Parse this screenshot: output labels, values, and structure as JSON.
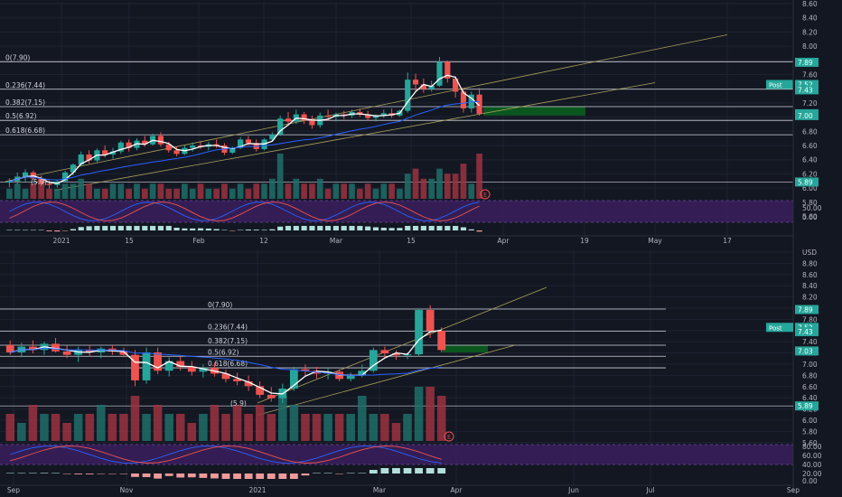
{
  "colors": {
    "background": "#131722",
    "grid": "#1f2331",
    "up": "#26a69a",
    "down": "#ef5350",
    "volume_up": "#1e6e68",
    "volume_down": "#9b3340",
    "fib_line": "#d1d4dc",
    "channel": "#a8a15a",
    "ma_white": "#ffffff",
    "ma_blue": "#2962ff",
    "target_zone": "#0b5d1e",
    "oscillator_band": "#3a1f5d",
    "label_teal": "#26a69a",
    "axis_text": "#b2b5be"
  },
  "chart_data": [
    {
      "type": "candlestick",
      "panel": "top",
      "timeframe": "daily",
      "y_ticks": [
        "8.60",
        "8.40",
        "8.20",
        "8.00",
        "7.80",
        "7.60",
        "7.40",
        "7.20",
        "7.00",
        "6.80",
        "6.60",
        "6.40",
        "6.20",
        "6.00",
        "5.80",
        "5.60"
      ],
      "oscillator_ticks": [
        "50.00",
        "0.00"
      ],
      "x_ticks": [
        "2021",
        "15",
        "Feb",
        "12",
        "Mar",
        "15",
        "Apr",
        "19",
        "May",
        "17"
      ],
      "ylim": [
        5.7,
        8.75
      ],
      "candles": [
        [
          5.88,
          5.95,
          5.8,
          5.9
        ],
        [
          5.9,
          6.05,
          5.85,
          5.98
        ],
        [
          5.98,
          6.1,
          5.9,
          6.05
        ],
        [
          6.05,
          6.08,
          5.92,
          5.95
        ],
        [
          5.95,
          6.0,
          5.82,
          5.86
        ],
        [
          5.86,
          5.92,
          5.78,
          5.84
        ],
        [
          5.84,
          5.93,
          5.8,
          5.9
        ],
        [
          5.9,
          6.08,
          5.88,
          6.05
        ],
        [
          6.05,
          6.2,
          6.0,
          6.18
        ],
        [
          6.18,
          6.4,
          6.15,
          6.35
        ],
        [
          6.35,
          6.42,
          6.2,
          6.25
        ],
        [
          6.25,
          6.45,
          6.22,
          6.42
        ],
        [
          6.42,
          6.5,
          6.3,
          6.35
        ],
        [
          6.35,
          6.46,
          6.28,
          6.4
        ],
        [
          6.4,
          6.58,
          6.36,
          6.55
        ],
        [
          6.55,
          6.6,
          6.4,
          6.46
        ],
        [
          6.46,
          6.62,
          6.42,
          6.58
        ],
        [
          6.58,
          6.66,
          6.48,
          6.52
        ],
        [
          6.52,
          6.7,
          6.5,
          6.66
        ],
        [
          6.66,
          6.72,
          6.48,
          6.52
        ],
        [
          6.52,
          6.56,
          6.38,
          6.42
        ],
        [
          6.42,
          6.48,
          6.32,
          6.36
        ],
        [
          6.36,
          6.5,
          6.34,
          6.46
        ],
        [
          6.46,
          6.55,
          6.4,
          6.5
        ],
        [
          6.5,
          6.58,
          6.44,
          6.48
        ],
        [
          6.48,
          6.56,
          6.42,
          6.52
        ],
        [
          6.52,
          6.6,
          6.46,
          6.5
        ],
        [
          6.5,
          6.54,
          6.34,
          6.38
        ],
        [
          6.38,
          6.48,
          6.36,
          6.46
        ],
        [
          6.46,
          6.64,
          6.44,
          6.6
        ],
        [
          6.6,
          6.66,
          6.5,
          6.54
        ],
        [
          6.54,
          6.6,
          6.4,
          6.44
        ],
        [
          6.44,
          6.62,
          6.42,
          6.6
        ],
        [
          6.6,
          6.72,
          6.56,
          6.68
        ],
        [
          6.68,
          7.0,
          6.66,
          6.95
        ],
        [
          6.95,
          7.06,
          6.85,
          6.9
        ],
        [
          6.9,
          7.1,
          6.86,
          7.02
        ],
        [
          7.02,
          7.06,
          6.86,
          6.92
        ],
        [
          6.92,
          7.0,
          6.78,
          6.84
        ],
        [
          6.84,
          7.05,
          6.8,
          7.0
        ],
        [
          7.0,
          7.1,
          6.92,
          6.98
        ],
        [
          6.98,
          7.05,
          6.9,
          7.02
        ],
        [
          7.02,
          7.08,
          6.94,
          7.0
        ],
        [
          7.0,
          7.1,
          6.96,
          7.06
        ],
        [
          7.06,
          7.12,
          6.98,
          7.02
        ],
        [
          7.02,
          7.08,
          6.92,
          6.96
        ],
        [
          6.96,
          7.02,
          6.9,
          7.0
        ],
        [
          7.0,
          7.1,
          6.96,
          7.04
        ],
        [
          7.04,
          7.12,
          6.96,
          7.0
        ],
        [
          7.0,
          7.1,
          6.98,
          7.08
        ],
        [
          7.08,
          7.72,
          7.05,
          7.6
        ],
        [
          7.6,
          7.7,
          7.4,
          7.52
        ],
        [
          7.52,
          7.62,
          7.38,
          7.44
        ],
        [
          7.44,
          7.58,
          7.4,
          7.5
        ],
        [
          7.5,
          7.98,
          7.48,
          7.9
        ],
        [
          7.9,
          7.92,
          7.55,
          7.62
        ],
        [
          7.62,
          7.66,
          7.3,
          7.4
        ],
        [
          7.4,
          7.46,
          7.05,
          7.12
        ],
        [
          7.12,
          7.4,
          7.05,
          7.35
        ],
        [
          7.35,
          7.46,
          7.0,
          7.03
        ]
      ],
      "volume": [
        2,
        3,
        2,
        3,
        4,
        2,
        2,
        3,
        3,
        4,
        3,
        2,
        2,
        3,
        3,
        2,
        3,
        2,
        3,
        3,
        2,
        2,
        3,
        2,
        3,
        2,
        2,
        3,
        2,
        3,
        2,
        3,
        3,
        4,
        9,
        3,
        4,
        3,
        3,
        4,
        2,
        3,
        3,
        3,
        2,
        3,
        2,
        3,
        3,
        2,
        5,
        6,
        4,
        4,
        6,
        5,
        5,
        7,
        3,
        9
      ],
      "fib_levels": [
        {
          "label": "0(7.90)",
          "value": 7.9
        },
        {
          "label": "0.236(7.44)",
          "value": 7.44
        },
        {
          "label": "0.382(7.15)",
          "value": 7.15
        },
        {
          "label": "0.5(6.92)",
          "value": 6.92
        },
        {
          "label": "0.618(6.68)",
          "value": 6.68
        }
      ],
      "price_labels": [
        {
          "text": "7.89",
          "value": 7.89
        },
        {
          "text": "7.52",
          "value": 7.52,
          "tag": "Post"
        },
        {
          "text": "7.43",
          "value": 7.43
        },
        {
          "text": "7.03",
          "value": 7.03
        },
        {
          "text": "7.00",
          "value": 7.0
        },
        {
          "text": "5.89",
          "value": 5.89
        }
      ],
      "low_marker": {
        "text": "(5.9)",
        "value": 5.9
      },
      "event_marker": "E"
    },
    {
      "type": "candlestick",
      "panel": "bottom",
      "timeframe": "weekly",
      "y_ticks": [
        "USD",
        "8.80",
        "8.60",
        "8.40",
        "8.20",
        "8.00",
        "7.80",
        "7.60",
        "7.40",
        "7.20",
        "7.00",
        "6.80",
        "6.60",
        "6.40",
        "6.20",
        "6.00",
        "5.80",
        "5.60"
      ],
      "oscillator_ticks": [
        "80.00",
        "60.00",
        "40.00",
        "20.00",
        "0.00"
      ],
      "x_ticks": [
        "Sep",
        "Nov",
        "2021",
        "Mar",
        "Apr",
        "Jun",
        "Jul",
        "Sep"
      ],
      "ylim": [
        5.5,
        8.95
      ],
      "candles": [
        [
          7.15,
          7.25,
          6.95,
          7.0
        ],
        [
          7.0,
          7.2,
          6.9,
          7.12
        ],
        [
          7.12,
          7.25,
          6.98,
          7.05
        ],
        [
          7.05,
          7.22,
          6.95,
          7.18
        ],
        [
          7.18,
          7.3,
          7.0,
          7.02
        ],
        [
          7.02,
          7.14,
          6.88,
          6.95
        ],
        [
          6.95,
          7.12,
          6.8,
          7.06
        ],
        [
          7.06,
          7.16,
          6.92,
          7.0
        ],
        [
          7.0,
          7.12,
          6.88,
          7.08
        ],
        [
          7.08,
          7.15,
          6.95,
          7.02
        ],
        [
          7.02,
          7.1,
          6.9,
          6.95
        ],
        [
          6.95,
          7.05,
          6.3,
          6.42
        ],
        [
          6.42,
          7.1,
          6.35,
          7.0
        ],
        [
          7.0,
          7.1,
          6.55,
          6.62
        ],
        [
          6.62,
          6.9,
          6.5,
          6.82
        ],
        [
          6.82,
          6.92,
          6.62,
          6.7
        ],
        [
          6.7,
          6.82,
          6.52,
          6.6
        ],
        [
          6.6,
          6.75,
          6.48,
          6.68
        ],
        [
          6.68,
          6.78,
          6.5,
          6.56
        ],
        [
          6.56,
          6.64,
          6.38,
          6.45
        ],
        [
          6.45,
          6.58,
          6.32,
          6.4
        ],
        [
          6.4,
          6.52,
          6.2,
          6.3
        ],
        [
          6.3,
          6.4,
          6.05,
          6.12
        ],
        [
          6.12,
          6.28,
          5.98,
          6.05
        ],
        [
          6.05,
          6.35,
          5.95,
          6.25
        ],
        [
          6.25,
          6.7,
          6.2,
          6.65
        ],
        [
          6.65,
          6.75,
          6.5,
          6.62
        ],
        [
          6.62,
          6.7,
          6.46,
          6.56
        ],
        [
          6.56,
          6.68,
          6.44,
          6.6
        ],
        [
          6.6,
          6.65,
          6.4,
          6.45
        ],
        [
          6.45,
          6.58,
          6.4,
          6.52
        ],
        [
          6.52,
          6.75,
          6.48,
          6.62
        ],
        [
          6.62,
          7.1,
          6.58,
          7.05
        ],
        [
          7.05,
          7.12,
          6.88,
          6.98
        ],
        [
          6.98,
          7.04,
          6.85,
          6.94
        ],
        [
          6.94,
          7.0,
          6.86,
          6.96
        ],
        [
          6.96,
          7.9,
          6.92,
          7.88
        ],
        [
          7.88,
          7.98,
          7.3,
          7.45
        ],
        [
          7.45,
          7.52,
          7.0,
          7.05
        ]
      ],
      "volume": [
        3,
        2,
        4,
        3,
        3,
        2,
        3,
        3,
        4,
        3,
        3,
        5,
        3,
        4,
        3,
        3,
        2,
        3,
        4,
        3,
        4,
        3,
        4,
        3,
        5,
        4,
        3,
        3,
        3,
        3,
        3,
        5,
        3,
        3,
        2,
        3,
        6,
        6,
        5
      ],
      "fib_levels": [
        {
          "label": "0(7.90)",
          "value": 7.9
        },
        {
          "label": "0.236(7.44)",
          "value": 7.44
        },
        {
          "label": "0.382(7.15)",
          "value": 7.15
        },
        {
          "label": "0.5(6.92)",
          "value": 6.92
        },
        {
          "label": "0.618(6.68)",
          "value": 6.68
        }
      ],
      "price_labels": [
        {
          "text": "7.89",
          "value": 7.89
        },
        {
          "text": "7.52",
          "value": 7.52,
          "tag": "Post"
        },
        {
          "text": "7.43",
          "value": 7.43
        },
        {
          "text": "7.03",
          "value": 7.03
        },
        {
          "text": "5.89",
          "value": 5.89
        }
      ],
      "low_marker": {
        "text": "(5.9)",
        "value": 5.95
      },
      "event_marker": "E"
    }
  ]
}
